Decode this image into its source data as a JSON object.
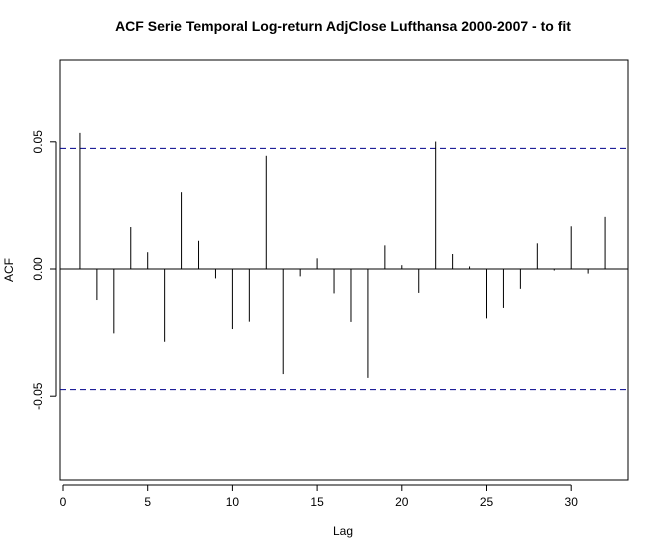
{
  "chart_data": {
    "type": "bar",
    "title": "ACF Serie Temporal Log-return AdjClose Lufthansa 2000-2007 - to fit",
    "xlabel": "Lag",
    "ylabel": "ACF",
    "xlim": [
      0,
      33
    ],
    "ylim": [
      -0.078,
      0.078
    ],
    "x_ticks": [
      0,
      5,
      10,
      15,
      20,
      25,
      30
    ],
    "x_tick_labels": [
      "0",
      "5",
      "10",
      "15",
      "20",
      "25",
      "30"
    ],
    "y_ticks": [
      -0.05,
      0.0,
      0.05
    ],
    "y_tick_labels": [
      "-0.05",
      "0.00",
      "0.05"
    ],
    "confidence_bounds": [
      0.0474,
      -0.0474
    ],
    "grid": false,
    "lags": [
      1,
      2,
      3,
      4,
      5,
      6,
      7,
      8,
      9,
      10,
      11,
      12,
      13,
      14,
      15,
      16,
      17,
      18,
      19,
      20,
      21,
      22,
      23,
      24,
      25,
      26,
      27,
      28,
      29,
      30,
      31,
      32
    ],
    "values": [
      0.0535,
      -0.0122,
      -0.0253,
      0.0165,
      0.0066,
      -0.0286,
      0.0302,
      0.0111,
      -0.0037,
      -0.0236,
      -0.0207,
      0.0445,
      -0.0413,
      -0.0029,
      0.0042,
      -0.0096,
      -0.0208,
      -0.0428,
      0.0093,
      0.0015,
      -0.0094,
      0.0501,
      0.0059,
      0.001,
      -0.0194,
      -0.0153,
      -0.0078,
      0.0101,
      -0.0006,
      0.0168,
      -0.0018,
      0.0205
    ],
    "colors": {
      "line": "#000000",
      "bound": "#00008b"
    }
  }
}
